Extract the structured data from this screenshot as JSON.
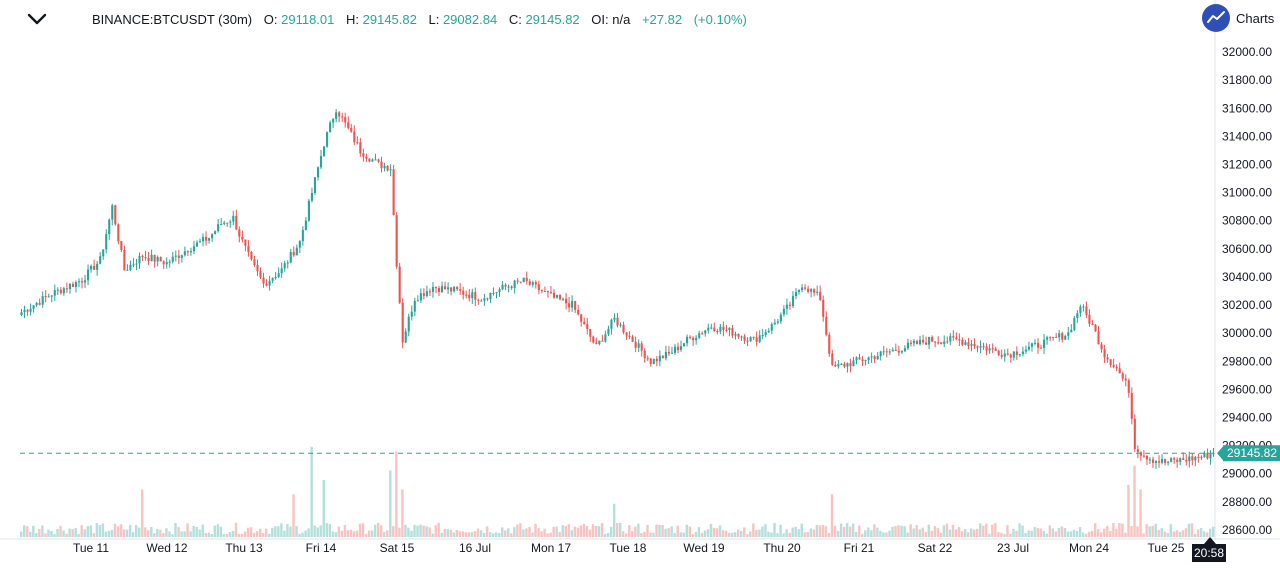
{
  "header": {
    "menu_icon": "chevron-down-icon",
    "symbol": "BINANCE:BTCUSDT (30m)",
    "open_label": "O:",
    "open": "29118.01",
    "high_label": "H:",
    "high": "29145.82",
    "low_label": "L:",
    "low": "29082.84",
    "close_label": "C:",
    "close": "29145.82",
    "oi_label": "OI:",
    "oi": "n/a",
    "change": "+27.82",
    "change_pct": "(+0.10%)",
    "brand_text": "Charts",
    "brand_icon": "trend-up-icon"
  },
  "colors": {
    "up": "#26a69a",
    "down": "#ef5350",
    "price_line": "#26a69a",
    "axis_text": "#131722",
    "time_badge": "#131722"
  },
  "chart_data": {
    "type": "candlestick",
    "symbol": "BINANCE:BTCUSDT",
    "interval": "30m",
    "y_ticks": [
      28600,
      28800,
      29000,
      29200,
      29400,
      29600,
      29800,
      30000,
      30200,
      30400,
      30600,
      30800,
      31000,
      31200,
      31400,
      31600,
      31800,
      32000
    ],
    "ylim": [
      28550,
      32100
    ],
    "x_labels": [
      "Tue 11",
      "Wed 12",
      "Thu 13",
      "Fri 14",
      "Sat 15",
      "16 Jul",
      "Mon 17",
      "Tue 18",
      "Wed 19",
      "Thu 20",
      "Fri 21",
      "Sat 22",
      "23 Jul",
      "Mon 24",
      "Tue 25"
    ],
    "last_price": 29145.82,
    "last_price_label": "29145.82",
    "time_label": "20:58",
    "price_path": [
      [
        0,
        30150
      ],
      [
        10,
        30280
      ],
      [
        20,
        30380
      ],
      [
        26,
        30520
      ],
      [
        30,
        30900
      ],
      [
        34,
        30450
      ],
      [
        40,
        30550
      ],
      [
        48,
        30500
      ],
      [
        55,
        30600
      ],
      [
        62,
        30680
      ],
      [
        66,
        30780
      ],
      [
        70,
        30820
      ],
      [
        72,
        30700
      ],
      [
        76,
        30500
      ],
      [
        80,
        30350
      ],
      [
        86,
        30450
      ],
      [
        92,
        30650
      ],
      [
        96,
        31000
      ],
      [
        100,
        31350
      ],
      [
        104,
        31600
      ],
      [
        108,
        31450
      ],
      [
        112,
        31300
      ],
      [
        118,
        31200
      ],
      [
        122,
        31180
      ],
      [
        124,
        30500
      ],
      [
        126,
        29950
      ],
      [
        130,
        30250
      ],
      [
        136,
        30330
      ],
      [
        144,
        30300
      ],
      [
        152,
        30250
      ],
      [
        160,
        30330
      ],
      [
        166,
        30370
      ],
      [
        172,
        30300
      ],
      [
        176,
        30250
      ],
      [
        182,
        30200
      ],
      [
        190,
        29900
      ],
      [
        196,
        30100
      ],
      [
        202,
        29950
      ],
      [
        208,
        29800
      ],
      [
        214,
        29850
      ],
      [
        220,
        29950
      ],
      [
        228,
        30050
      ],
      [
        236,
        30000
      ],
      [
        242,
        29950
      ],
      [
        248,
        30050
      ],
      [
        254,
        30200
      ],
      [
        258,
        30350
      ],
      [
        264,
        30250
      ],
      [
        268,
        29750
      ],
      [
        276,
        29800
      ],
      [
        284,
        29850
      ],
      [
        292,
        29900
      ],
      [
        300,
        29950
      ],
      [
        310,
        29950
      ],
      [
        318,
        29900
      ],
      [
        326,
        29850
      ],
      [
        334,
        29900
      ],
      [
        340,
        29950
      ],
      [
        346,
        30000
      ],
      [
        350,
        30200
      ],
      [
        354,
        30050
      ],
      [
        358,
        29850
      ],
      [
        362,
        29750
      ],
      [
        366,
        29600
      ],
      [
        368,
        29200
      ],
      [
        370,
        29150
      ],
      [
        374,
        29100
      ],
      [
        378,
        29080
      ],
      [
        384,
        29100
      ],
      [
        390,
        29120
      ],
      [
        394,
        29145.82
      ]
    ],
    "volume_spikes": [
      [
        40,
        0.5
      ],
      [
        90,
        0.45
      ],
      [
        96,
        0.95
      ],
      [
        100,
        0.6
      ],
      [
        122,
        0.7
      ],
      [
        124,
        0.9
      ],
      [
        126,
        0.5
      ],
      [
        196,
        0.35
      ],
      [
        268,
        0.45
      ],
      [
        366,
        0.55
      ],
      [
        368,
        0.75
      ],
      [
        370,
        0.5
      ]
    ]
  }
}
